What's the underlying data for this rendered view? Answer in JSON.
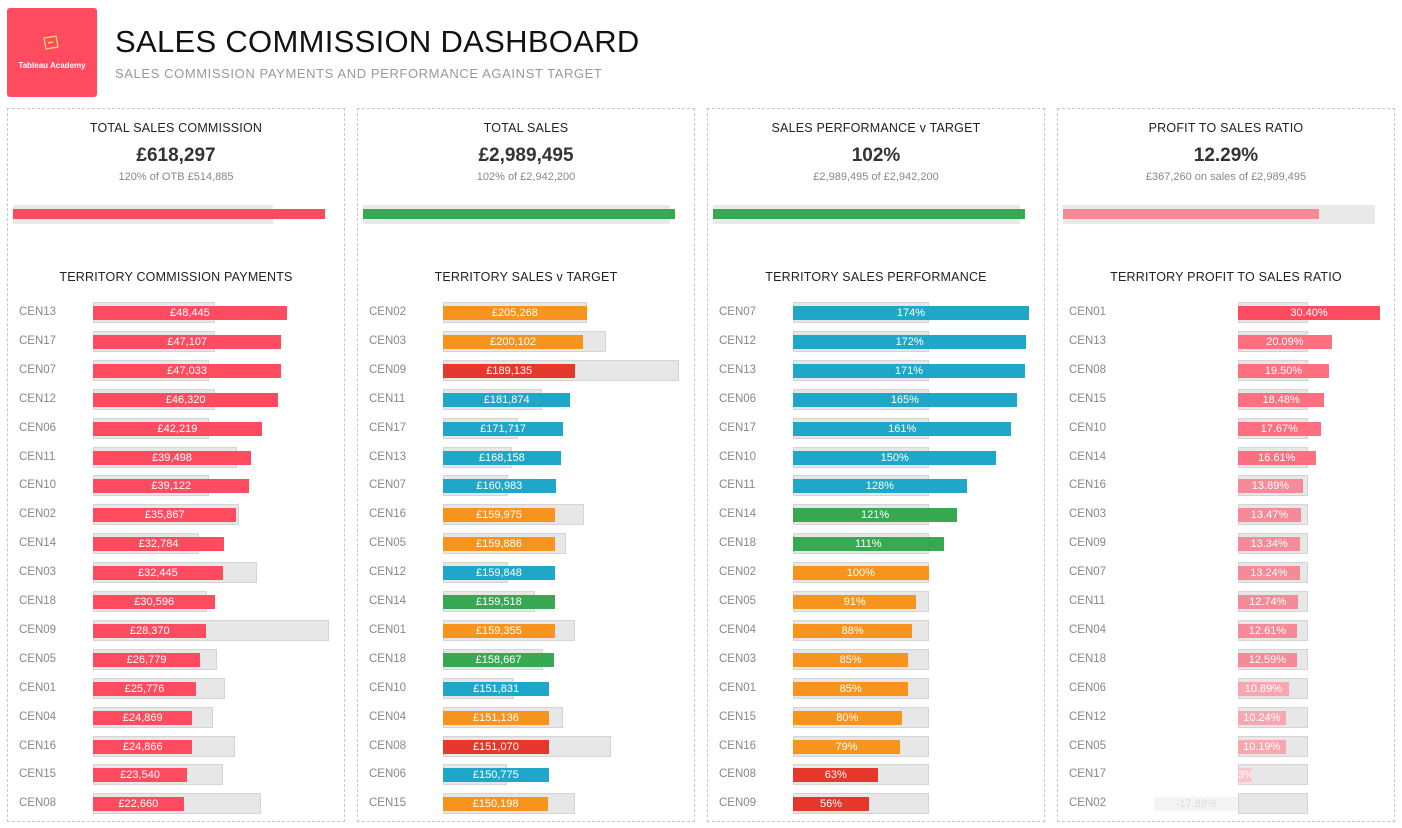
{
  "header": {
    "logo_text": "Tableau Academy",
    "title": "SALES COMMISSION DASHBOARD",
    "subtitle": "SALES COMMISSION PAYMENTS AND PERFORMANCE AGAINST TARGET"
  },
  "colors": {
    "red": "#ff4b5f",
    "pink": "#f58a98",
    "orange": "#f7941d",
    "blue": "#1ea7c9",
    "green": "#38a853",
    "darkred": "#e5372b",
    "track": "#e9e9e9"
  },
  "panels": [
    {
      "kpi_title": "TOTAL SALES COMMISSION",
      "kpi_value": "£618,297",
      "kpi_sub": "120% of OTB £514,885",
      "kpi_bar": {
        "value": 618297,
        "target": 514885,
        "color": "#ff4b5f"
      },
      "section_title": "TERRITORY COMMISSION PAYMENTS",
      "rows": [
        {
          "label": "CEN13",
          "text": "£48,445",
          "value": 48445,
          "target": 30500,
          "color": "#ff4b5f"
        },
        {
          "label": "CEN17",
          "text": "£47,107",
          "value": 47107,
          "target": 30500,
          "color": "#ff4b5f"
        },
        {
          "label": "CEN07",
          "text": "£47,033",
          "value": 47033,
          "target": 29000,
          "color": "#ff4b5f"
        },
        {
          "label": "CEN12",
          "text": "£46,320",
          "value": 46320,
          "target": 30500,
          "color": "#ff4b5f"
        },
        {
          "label": "CEN06",
          "text": "£42,219",
          "value": 42219,
          "target": 29000,
          "color": "#ff4b5f"
        },
        {
          "label": "CEN11",
          "text": "£39,498",
          "value": 39498,
          "target": 36000,
          "color": "#ff4b5f"
        },
        {
          "label": "CEN10",
          "text": "£39,122",
          "value": 39122,
          "target": 29000,
          "color": "#ff4b5f"
        },
        {
          "label": "CEN02",
          "text": "£35,867",
          "value": 35867,
          "target": 36500,
          "color": "#ff4b5f"
        },
        {
          "label": "CEN14",
          "text": "£32,784",
          "value": 32784,
          "target": 26500,
          "color": "#ff4b5f"
        },
        {
          "label": "CEN03",
          "text": "£32,445",
          "value": 32445,
          "target": 41000,
          "color": "#ff4b5f"
        },
        {
          "label": "CEN18",
          "text": "£30,596",
          "value": 30596,
          "target": 28500,
          "color": "#ff4b5f"
        },
        {
          "label": "CEN09",
          "text": "£28,370",
          "value": 28370,
          "target": 59000,
          "color": "#ff4b5f"
        },
        {
          "label": "CEN05",
          "text": "£26,779",
          "value": 26779,
          "target": 31000,
          "color": "#ff4b5f"
        },
        {
          "label": "CEN01",
          "text": "£25,776",
          "value": 25776,
          "target": 33000,
          "color": "#ff4b5f"
        },
        {
          "label": "CEN04",
          "text": "£24,869",
          "value": 24869,
          "target": 30000,
          "color": "#ff4b5f"
        },
        {
          "label": "CEN16",
          "text": "£24,866",
          "value": 24866,
          "target": 35500,
          "color": "#ff4b5f"
        },
        {
          "label": "CEN15",
          "text": "£23,540",
          "value": 23540,
          "target": 32500,
          "color": "#ff4b5f"
        },
        {
          "label": "CEN08",
          "text": "£22,660",
          "value": 22660,
          "target": 42000,
          "color": "#ff4b5f"
        }
      ]
    },
    {
      "kpi_title": "TOTAL SALES",
      "kpi_value": "£2,989,495",
      "kpi_sub": "102% of  £2,942,200",
      "kpi_bar": {
        "value": 2989495,
        "target": 2942200,
        "color": "#38a853"
      },
      "section_title": "TERRITORY SALES v TARGET",
      "rows": [
        {
          "label": "CEN02",
          "text": "£205,268",
          "value": 205268,
          "target": 205000,
          "color": "#f7941d"
        },
        {
          "label": "CEN03",
          "text": "£200,102",
          "value": 200102,
          "target": 233000,
          "color": "#f7941d"
        },
        {
          "label": "CEN09",
          "text": "£189,135",
          "value": 189135,
          "target": 337000,
          "color": "#e5372b"
        },
        {
          "label": "CEN11",
          "text": "£181,874",
          "value": 181874,
          "target": 142000,
          "color": "#1ea7c9"
        },
        {
          "label": "CEN17",
          "text": "£171,717",
          "value": 171717,
          "target": 107000,
          "color": "#1ea7c9"
        },
        {
          "label": "CEN13",
          "text": "£168,158",
          "value": 168158,
          "target": 98000,
          "color": "#1ea7c9"
        },
        {
          "label": "CEN07",
          "text": "£160,983",
          "value": 160983,
          "target": 92500,
          "color": "#1ea7c9"
        },
        {
          "label": "CEN16",
          "text": "£159,975",
          "value": 159975,
          "target": 202000,
          "color": "#f7941d"
        },
        {
          "label": "CEN05",
          "text": "£159,886",
          "value": 159886,
          "target": 176000,
          "color": "#f7941d"
        },
        {
          "label": "CEN12",
          "text": "£159,848",
          "value": 159848,
          "target": 93000,
          "color": "#1ea7c9"
        },
        {
          "label": "CEN14",
          "text": "£159,518",
          "value": 159518,
          "target": 132000,
          "color": "#38a853"
        },
        {
          "label": "CEN01",
          "text": "£159,355",
          "value": 159355,
          "target": 188000,
          "color": "#f7941d"
        },
        {
          "label": "CEN18",
          "text": "£158,667",
          "value": 158667,
          "target": 143000,
          "color": "#38a853"
        },
        {
          "label": "CEN10",
          "text": "£151,831",
          "value": 151831,
          "target": 101000,
          "color": "#1ea7c9"
        },
        {
          "label": "CEN04",
          "text": "£151,136",
          "value": 151136,
          "target": 172000,
          "color": "#f7941d"
        },
        {
          "label": "CEN08",
          "text": "£151,070",
          "value": 151070,
          "target": 240000,
          "color": "#e5372b"
        },
        {
          "label": "CEN06",
          "text": "£150,775",
          "value": 150775,
          "target": 91500,
          "color": "#1ea7c9"
        },
        {
          "label": "CEN15",
          "text": "£150,198",
          "value": 150198,
          "target": 188000,
          "color": "#f7941d"
        }
      ]
    },
    {
      "kpi_title": "SALES PERFORMANCE v TARGET",
      "kpi_value": "102%",
      "kpi_sub": "£2,989,495 of  £2,942,200",
      "kpi_bar": {
        "value": 2989495,
        "target": 2942200,
        "color": "#38a853"
      },
      "section_title": "TERRITORY SALES PERFORMANCE",
      "rows": [
        {
          "label": "CEN07",
          "text": "174%",
          "value": 174,
          "target": 100,
          "color": "#1ea7c9"
        },
        {
          "label": "CEN12",
          "text": "172%",
          "value": 172,
          "target": 100,
          "color": "#1ea7c9"
        },
        {
          "label": "CEN13",
          "text": "171%",
          "value": 171,
          "target": 100,
          "color": "#1ea7c9"
        },
        {
          "label": "CEN06",
          "text": "165%",
          "value": 165,
          "target": 100,
          "color": "#1ea7c9"
        },
        {
          "label": "CEN17",
          "text": "161%",
          "value": 161,
          "target": 100,
          "color": "#1ea7c9"
        },
        {
          "label": "CEN10",
          "text": "150%",
          "value": 150,
          "target": 100,
          "color": "#1ea7c9"
        },
        {
          "label": "CEN11",
          "text": "128%",
          "value": 128,
          "target": 100,
          "color": "#1ea7c9"
        },
        {
          "label": "CEN14",
          "text": "121%",
          "value": 121,
          "target": 100,
          "color": "#38a853"
        },
        {
          "label": "CEN18",
          "text": "111%",
          "value": 111,
          "target": 100,
          "color": "#38a853"
        },
        {
          "label": "CEN02",
          "text": "100%",
          "value": 100,
          "target": 100,
          "color": "#f7941d"
        },
        {
          "label": "CEN05",
          "text": "91%",
          "value": 91,
          "target": 100,
          "color": "#f7941d"
        },
        {
          "label": "CEN04",
          "text": "88%",
          "value": 88,
          "target": 100,
          "color": "#f7941d"
        },
        {
          "label": "CEN03",
          "text": "85%",
          "value": 85,
          "target": 100,
          "color": "#f7941d"
        },
        {
          "label": "CEN01",
          "text": "85%",
          "value": 85,
          "target": 100,
          "color": "#f7941d"
        },
        {
          "label": "CEN15",
          "text": "80%",
          "value": 80,
          "target": 100,
          "color": "#f7941d"
        },
        {
          "label": "CEN16",
          "text": "79%",
          "value": 79,
          "target": 100,
          "color": "#f7941d"
        },
        {
          "label": "CEN08",
          "text": "63%",
          "value": 63,
          "target": 100,
          "color": "#e5372b"
        },
        {
          "label": "CEN09",
          "text": "56%",
          "value": 56,
          "target": 100,
          "color": "#e5372b"
        }
      ]
    },
    {
      "kpi_title": "PROFIT TO SALES RATIO",
      "kpi_value": "12.29%",
      "kpi_sub": "£367,260 on sales of £2,989,495",
      "kpi_bar": {
        "value": 12.29,
        "target": 15,
        "color": "#f58a98"
      },
      "section_title": "TERRITORY PROFIT TO SALES RATIO",
      "rows": [
        {
          "label": "CEN01",
          "text": "30.40%",
          "value": 30.4,
          "target": 15,
          "color": "#ff4b5f"
        },
        {
          "label": "CEN13",
          "text": "20.09%",
          "value": 20.09,
          "target": 15,
          "color": "#ff6f80"
        },
        {
          "label": "CEN08",
          "text": "19.50%",
          "value": 19.5,
          "target": 15,
          "color": "#ff6f80"
        },
        {
          "label": "CEN15",
          "text": "18.48%",
          "value": 18.48,
          "target": 15,
          "color": "#ff6f80"
        },
        {
          "label": "CEN10",
          "text": "17.67%",
          "value": 17.67,
          "target": 15,
          "color": "#ff6f80"
        },
        {
          "label": "CEN14",
          "text": "16.61%",
          "value": 16.61,
          "target": 15,
          "color": "#ff6f80"
        },
        {
          "label": "CEN16",
          "text": "13.89%",
          "value": 13.89,
          "target": 15,
          "color": "#f58a98"
        },
        {
          "label": "CEN03",
          "text": "13.47%",
          "value": 13.47,
          "target": 15,
          "color": "#f58a98"
        },
        {
          "label": "CEN09",
          "text": "13.34%",
          "value": 13.34,
          "target": 15,
          "color": "#f58a98"
        },
        {
          "label": "CEN07",
          "text": "13.24%",
          "value": 13.24,
          "target": 15,
          "color": "#f58a98"
        },
        {
          "label": "CEN11",
          "text": "12.74%",
          "value": 12.74,
          "target": 15,
          "color": "#f58a98"
        },
        {
          "label": "CEN04",
          "text": "12.61%",
          "value": 12.61,
          "target": 15,
          "color": "#f58a98"
        },
        {
          "label": "CEN18",
          "text": "12.59%",
          "value": 12.59,
          "target": 15,
          "color": "#f58a98"
        },
        {
          "label": "CEN06",
          "text": "10.89%",
          "value": 10.89,
          "target": 15,
          "color": "#f8a7b1"
        },
        {
          "label": "CEN12",
          "text": "10.24%",
          "value": 10.24,
          "target": 15,
          "color": "#f8a7b1"
        },
        {
          "label": "CEN05",
          "text": "10.19%",
          "value": 10.19,
          "target": 15,
          "color": "#f8a7b1"
        },
        {
          "label": "CEN17",
          "text": "3%",
          "value": 3,
          "target": 15,
          "color": "#fbc4cb"
        },
        {
          "label": "CEN02",
          "text": "-17.88%",
          "value": -17.88,
          "target": 15,
          "color": "#f4f4f4"
        }
      ]
    }
  ]
}
